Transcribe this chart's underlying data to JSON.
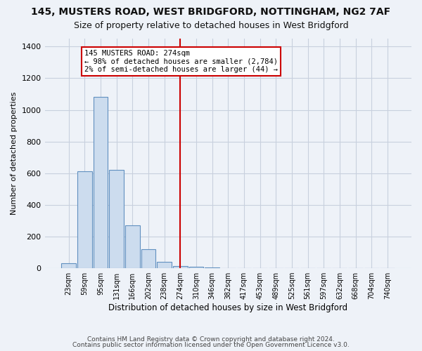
{
  "title": "145, MUSTERS ROAD, WEST BRIDGFORD, NOTTINGHAM, NG2 7AF",
  "subtitle": "Size of property relative to detached houses in West Bridgford",
  "xlabel": "Distribution of detached houses by size in West Bridgford",
  "ylabel": "Number of detached properties",
  "bar_labels": [
    "23sqm",
    "59sqm",
    "95sqm",
    "131sqm",
    "166sqm",
    "202sqm",
    "238sqm",
    "274sqm",
    "310sqm",
    "346sqm",
    "382sqm",
    "417sqm",
    "453sqm",
    "489sqm",
    "525sqm",
    "561sqm",
    "597sqm",
    "632sqm",
    "668sqm",
    "704sqm",
    "740sqm"
  ],
  "bar_values": [
    30,
    610,
    1080,
    620,
    270,
    120,
    40,
    15,
    10,
    5,
    2,
    0,
    0,
    0,
    0,
    0,
    0,
    0,
    0,
    0,
    0
  ],
  "highlight_index": 7,
  "bar_color": "#ccdcee",
  "bar_edge_color": "#6090c0",
  "highlight_line_color": "#cc0000",
  "annotation_text": "145 MUSTERS ROAD: 274sqm\n← 98% of detached houses are smaller (2,784)\n2% of semi-detached houses are larger (44) →",
  "annotation_box_color": "#ffffff",
  "annotation_box_edge_color": "#cc0000",
  "ylim": [
    0,
    1450
  ],
  "yticks": [
    0,
    200,
    400,
    600,
    800,
    1000,
    1200,
    1400
  ],
  "footer1": "Contains HM Land Registry data © Crown copyright and database right 2024.",
  "footer2": "Contains public sector information licensed under the Open Government Licence v3.0.",
  "bg_color": "#eef2f8",
  "grid_color": "#c8d0de",
  "title_fontsize": 10,
  "subtitle_fontsize": 9,
  "annotation_fontsize": 7.5,
  "footer_fontsize": 6.5
}
